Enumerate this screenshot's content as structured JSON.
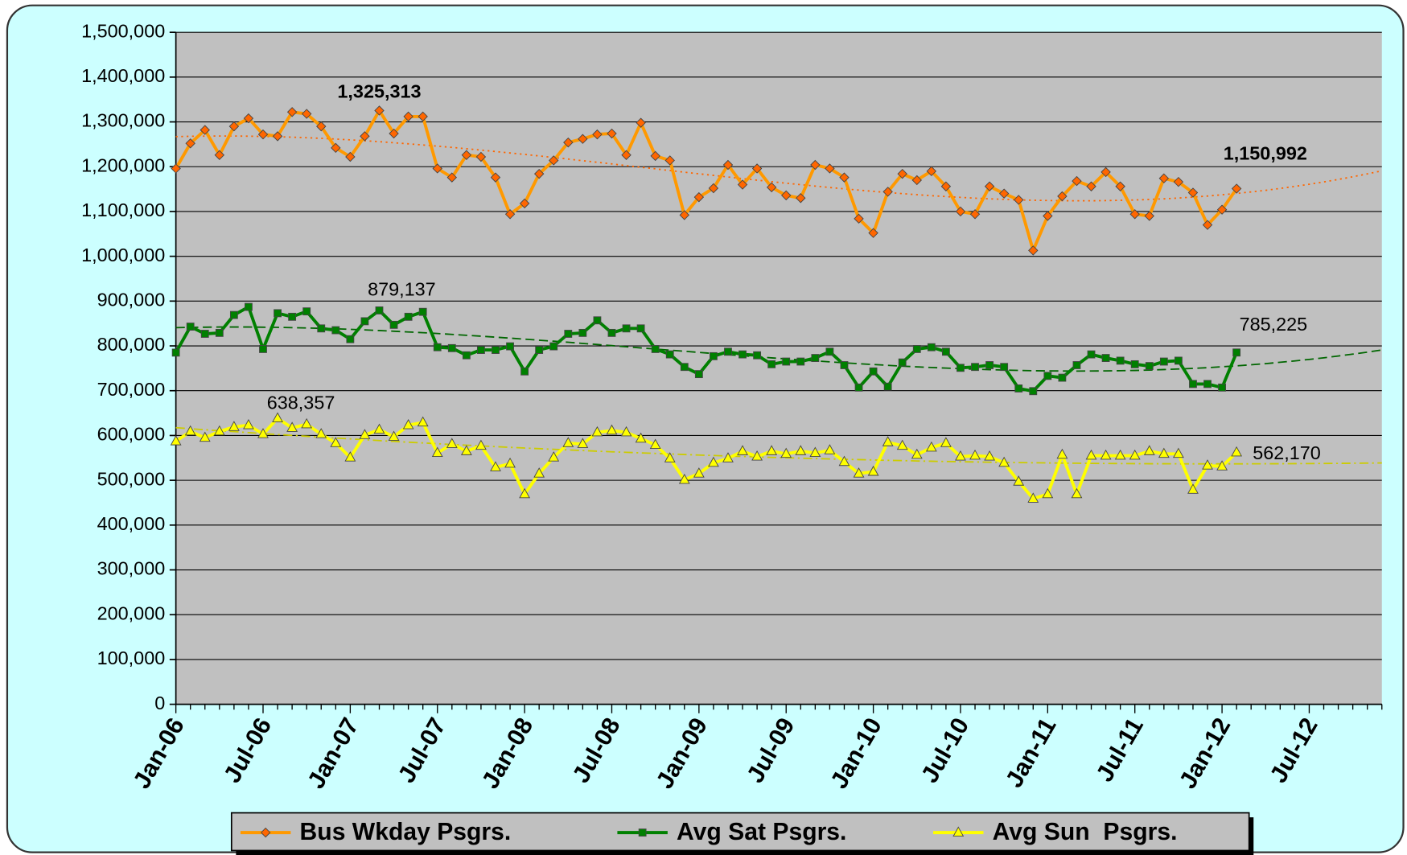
{
  "chart_data": {
    "type": "line",
    "categories": [
      "Jan-06",
      null,
      null,
      null,
      null,
      null,
      "Jul-06",
      null,
      null,
      null,
      null,
      null,
      "Jan-07",
      null,
      null,
      null,
      null,
      null,
      "Jul-07",
      null,
      null,
      null,
      null,
      null,
      "Jan-08",
      null,
      null,
      null,
      null,
      null,
      "Jul-08",
      null,
      null,
      null,
      null,
      null,
      "Jan-09",
      null,
      null,
      null,
      null,
      null,
      "Jul-09",
      null,
      null,
      null,
      null,
      null,
      "Jan-10",
      null,
      null,
      null,
      null,
      null,
      "Jul-10",
      null,
      null,
      null,
      null,
      null,
      "Jan-11",
      null,
      null,
      null,
      null,
      null,
      "Jul-11",
      null,
      null,
      null,
      null,
      null,
      "Jan-12",
      null,
      null,
      null,
      null,
      null,
      "Jul-12",
      null,
      null,
      null,
      null,
      null
    ],
    "series": [
      {
        "name": "Bus Wkday Psgrs.",
        "color": "#ff9900",
        "marker_color": "#ff6600",
        "trend_color": "#ff6600",
        "marker": "diamond",
        "values": [
          1196000,
          1252000,
          1282000,
          1226000,
          1290000,
          1308000,
          1272000,
          1268000,
          1322000,
          1318000,
          1290000,
          1242000,
          1222000,
          1268000,
          1325313,
          1274000,
          1312000,
          1312000,
          1196000,
          1176000,
          1226000,
          1222000,
          1176000,
          1094000,
          1118000,
          1184000,
          1214000,
          1254000,
          1262000,
          1272000,
          1274000,
          1226000,
          1298000,
          1224000,
          1214000,
          1092000,
          1132000,
          1152000,
          1204000,
          1160000,
          1196000,
          1154000,
          1136000,
          1130000,
          1204000,
          1196000,
          1176000,
          1084000,
          1052000,
          1144000,
          1184000,
          1170000,
          1190000,
          1156000,
          1100000,
          1094000,
          1156000,
          1140000,
          1126000,
          1013000,
          1090000,
          1134000,
          1168000,
          1156000,
          1188000,
          1156000,
          1094000,
          1090000,
          1174000,
          1166000,
          1142000,
          1070000,
          1104000,
          1150992,
          null,
          null,
          null,
          null,
          null,
          null,
          null,
          null,
          null,
          null
        ],
        "value_labels": [
          null,
          null,
          null,
          null,
          null,
          null,
          null,
          null,
          null,
          null,
          null,
          null,
          null,
          null,
          "1,325,313",
          null,
          null,
          null,
          null,
          null,
          null,
          null,
          null,
          null,
          null,
          null,
          null,
          null,
          null,
          null,
          null,
          null,
          null,
          null,
          null,
          null,
          null,
          null,
          null,
          null,
          null,
          null,
          null,
          null,
          null,
          null,
          null,
          null,
          null,
          null,
          null,
          null,
          null,
          null,
          null,
          null,
          null,
          null,
          null,
          null,
          null,
          null,
          null,
          null,
          null,
          null,
          null,
          null,
          null,
          null,
          null,
          null,
          null,
          "1,150,992",
          null,
          null,
          null,
          null,
          null,
          null,
          null,
          null,
          null,
          null
        ]
      },
      {
        "name": "Avg Sat Psgrs.",
        "color": "#008000",
        "marker_color": "#008000",
        "trend_color": "#006600",
        "marker": "square",
        "values": [
          785000,
          843000,
          827000,
          829000,
          869000,
          887000,
          793000,
          873000,
          865000,
          877000,
          839000,
          835000,
          815000,
          855000,
          879137,
          847000,
          865000,
          876000,
          797000,
          795000,
          779000,
          791000,
          791000,
          799000,
          743000,
          791000,
          799000,
          827000,
          829000,
          857000,
          829000,
          839000,
          839000,
          793000,
          781000,
          753000,
          737000,
          777000,
          787000,
          781000,
          779000,
          759000,
          765000,
          765000,
          773000,
          787000,
          757000,
          707000,
          743000,
          709000,
          763000,
          793000,
          797000,
          787000,
          751000,
          753000,
          757000,
          753000,
          705000,
          699000,
          733000,
          729000,
          757000,
          781000,
          773000,
          767000,
          759000,
          755000,
          765000,
          767000,
          715000,
          715000,
          707000,
          785225,
          null,
          null,
          null,
          null,
          null,
          null,
          null,
          null,
          null,
          null
        ],
        "value_labels": [
          null,
          null,
          null,
          null,
          null,
          null,
          null,
          null,
          null,
          null,
          null,
          null,
          null,
          null,
          "879,137",
          null,
          null,
          null,
          null,
          null,
          null,
          null,
          null,
          null,
          null,
          null,
          null,
          null,
          null,
          null,
          null,
          null,
          null,
          null,
          null,
          null,
          null,
          null,
          null,
          null,
          null,
          null,
          null,
          null,
          null,
          null,
          null,
          null,
          null,
          null,
          null,
          null,
          null,
          null,
          null,
          null,
          null,
          null,
          null,
          null,
          null,
          null,
          null,
          null,
          null,
          null,
          null,
          null,
          null,
          null,
          null,
          null,
          null,
          "785,225",
          null,
          null,
          null,
          null,
          null,
          null,
          null,
          null,
          null,
          null
        ]
      },
      {
        "name": "Avg Sun  Psgrs.",
        "color": "#ffff00",
        "marker_color": "#ffff00",
        "trend_color": "#cccc00",
        "marker": "triangle",
        "values": [
          587000,
          609000,
          595000,
          609000,
          619000,
          623000,
          603000,
          638357,
          617000,
          625000,
          603000,
          583000,
          551000,
          601000,
          613000,
          597000,
          623000,
          629000,
          561000,
          581000,
          565000,
          577000,
          529000,
          537000,
          469000,
          515000,
          551000,
          583000,
          581000,
          607000,
          611000,
          607000,
          593000,
          579000,
          549000,
          501000,
          515000,
          539000,
          549000,
          565000,
          553000,
          565000,
          559000,
          565000,
          561000,
          567000,
          541000,
          515000,
          519000,
          585000,
          577000,
          557000,
          573000,
          583000,
          553000,
          555000,
          553000,
          539000,
          497000,
          459000,
          469000,
          557000,
          469000,
          555000,
          555000,
          555000,
          555000,
          565000,
          559000,
          559000,
          479000,
          533000,
          531000,
          562170,
          null,
          null,
          null,
          null,
          null,
          null,
          null,
          null,
          null,
          null
        ],
        "value_labels": [
          null,
          null,
          null,
          null,
          null,
          null,
          null,
          "638,357",
          null,
          null,
          null,
          null,
          null,
          null,
          null,
          null,
          null,
          null,
          null,
          null,
          null,
          null,
          null,
          null,
          null,
          null,
          null,
          null,
          null,
          null,
          null,
          null,
          null,
          null,
          null,
          null,
          null,
          null,
          null,
          null,
          null,
          null,
          null,
          null,
          null,
          null,
          null,
          null,
          null,
          null,
          null,
          null,
          null,
          null,
          null,
          null,
          null,
          null,
          null,
          null,
          null,
          null,
          null,
          null,
          null,
          null,
          null,
          null,
          null,
          null,
          null,
          null,
          null,
          "562,170",
          null,
          null,
          null,
          null,
          null,
          null,
          null,
          null,
          null,
          null
        ]
      }
    ],
    "ylim": [
      0,
      1500000
    ],
    "yticks": [
      0,
      {
        "value": 100000,
        "label": "100,000"
      },
      {
        "value": 200000,
        "label": "200,000"
      },
      {
        "value": 300000,
        "label": "300,000"
      },
      {
        "value": 400000,
        "label": "400,000"
      },
      {
        "value": 500000,
        "label": "500,000"
      },
      {
        "value": 600000,
        "label": "600,000"
      },
      {
        "value": 700000,
        "label": "700,000"
      },
      {
        "value": 800000,
        "label": "800,000"
      },
      {
        "value": 900000,
        "label": "900,000"
      },
      {
        "value": 1000000,
        "label": "1,000,000"
      },
      {
        "value": 1100000,
        "label": "1,100,000"
      },
      {
        "value": 1200000,
        "label": "1,200,000"
      },
      {
        "value": 1300000,
        "label": "1,300,000"
      },
      {
        "value": 1400000,
        "label": "1,400,000"
      },
      {
        "value": 1500000,
        "label": "1,500,000"
      }
    ],
    "grid": true,
    "trendline": "polynomial",
    "legend": "bottom",
    "plot_background": "#c0c0c0",
    "background": "#ccffff"
  }
}
